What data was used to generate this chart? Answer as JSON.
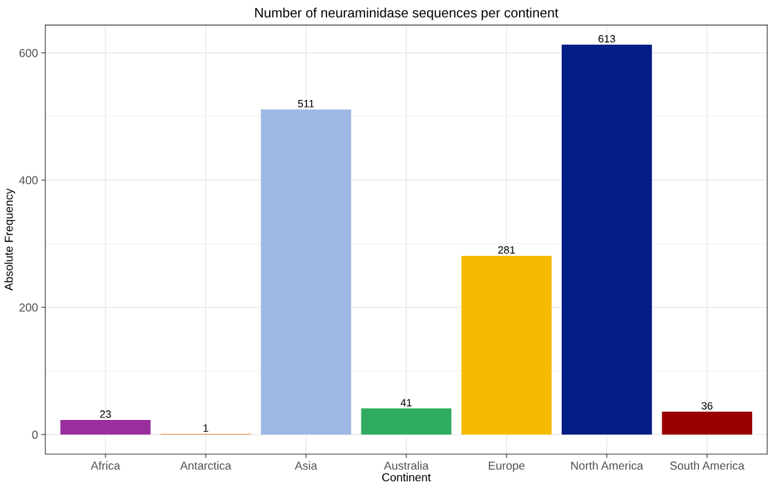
{
  "chart_data": {
    "type": "bar",
    "title": "Number of neuraminidase sequences per continent",
    "xlabel": "Continent",
    "ylabel": "Absolute Frequency",
    "categories": [
      "Africa",
      "Antarctica",
      "Asia",
      "Australia",
      "Europe",
      "North America",
      "South America"
    ],
    "values": [
      23,
      1,
      511,
      41,
      281,
      613,
      36
    ],
    "colors": [
      "#992f9c",
      "#e8823a",
      "#9db8e5",
      "#2fac5f",
      "#f5bb00",
      "#021d83",
      "#9b0000"
    ],
    "data_labels": true,
    "ylim": [
      -30.65,
      643.65
    ],
    "yticks": [
      0,
      200,
      400,
      600
    ],
    "grid": true,
    "legend": false
  }
}
